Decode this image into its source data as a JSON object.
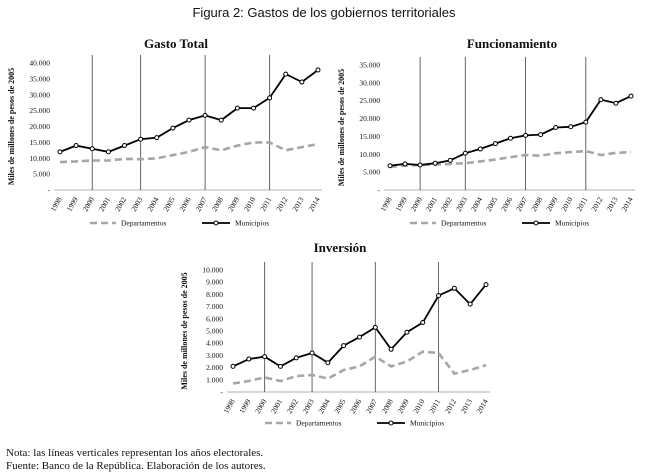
{
  "figure_title": "Figura 2: Gastos de los gobiernos territoriales",
  "notes": [
    "Nota: las líneas verticales representan los años electorales.",
    "Fuente: Banco de la República. Elaboración de los autores."
  ],
  "chart_data": [
    {
      "type": "line",
      "title": "Gasto Total",
      "xlabel": "",
      "ylabel": "Miles de millones de pesos de 2005",
      "x": [
        "1998",
        "1999",
        "2000",
        "2001",
        "2002",
        "2003",
        "2004",
        "2005",
        "2006",
        "2007",
        "2008",
        "2009",
        "2010",
        "2011",
        "2012",
        "2013",
        "2014"
      ],
      "yticks": [
        "-",
        "5.000",
        "10.000",
        "15.000",
        "20.000",
        "25.000",
        "30.000",
        "35.000",
        "40.000"
      ],
      "ylim": [
        0,
        40000
      ],
      "vlines": [
        "2000",
        "2003",
        "2007",
        "2011"
      ],
      "legend": "bottom",
      "series": [
        {
          "name": "Departamentos",
          "style": "dashed",
          "color": "#a6a6a6",
          "values": [
            8800,
            9000,
            9300,
            9300,
            9800,
            9700,
            10000,
            11000,
            12000,
            13500,
            12500,
            14000,
            15000,
            15000,
            12500,
            13500,
            14500
          ]
        },
        {
          "name": "Municipios",
          "style": "solid-markers",
          "color": "#000000",
          "values": [
            12000,
            14000,
            13000,
            12000,
            14000,
            16000,
            16500,
            19500,
            22000,
            23500,
            22000,
            25800,
            25800,
            29000,
            36500,
            34000,
            37800
          ]
        }
      ]
    },
    {
      "type": "line",
      "title": "Funcionamiento",
      "xlabel": "",
      "ylabel": "Miles de millones de pesos de 2005",
      "x": [
        "1998",
        "1999",
        "2000",
        "2001",
        "2002",
        "2003",
        "2004",
        "2005",
        "2006",
        "2007",
        "2008",
        "2009",
        "2010",
        "2011",
        "2012",
        "2013",
        "2014"
      ],
      "yticks": [
        "-",
        "5.000",
        "10.000",
        "15.000",
        "20.000",
        "25.000",
        "30.000",
        "35.000"
      ],
      "ylim": [
        0,
        35000
      ],
      "vlines": [
        "2000",
        "2003",
        "2007",
        "2011"
      ],
      "legend": "bottom",
      "series": [
        {
          "name": "Departamentos",
          "style": "dashed",
          "color": "#a6a6a6",
          "values": [
            6500,
            6800,
            7000,
            7100,
            7300,
            7500,
            8000,
            8500,
            9200,
            9800,
            9600,
            10300,
            10600,
            10900,
            9800,
            10400,
            10600
          ]
        },
        {
          "name": "Municipios",
          "style": "solid-markers",
          "color": "#000000",
          "values": [
            6800,
            7300,
            7000,
            7500,
            8300,
            10300,
            11500,
            13000,
            14500,
            15300,
            15500,
            17500,
            17700,
            19000,
            25300,
            24300,
            26300
          ]
        }
      ]
    },
    {
      "type": "line",
      "title": "Inversión",
      "xlabel": "",
      "ylabel": "Miles de millones de pesos de 2005",
      "x": [
        "1998",
        "1999",
        "2000",
        "2001",
        "2002",
        "2003",
        "2004",
        "2005",
        "2006",
        "2007",
        "2008",
        "2009",
        "2010",
        "2011",
        "2012",
        "2013",
        "2014"
      ],
      "yticks": [
        "-",
        "1.000",
        "2.000",
        "3.000",
        "4.000",
        "5.000",
        "6.000",
        "7.000",
        "8.000",
        "9.000",
        "10.000"
      ],
      "ylim": [
        0,
        10000
      ],
      "vlines": [
        "2000",
        "2003",
        "2007",
        "2011"
      ],
      "legend": "bottom",
      "series": [
        {
          "name": "Departamentos",
          "style": "dashed",
          "color": "#a6a6a6",
          "values": [
            700,
            900,
            1200,
            900,
            1300,
            1400,
            1100,
            1800,
            2100,
            2900,
            2100,
            2500,
            3300,
            3200,
            1500,
            1800,
            2200
          ]
        },
        {
          "name": "Municipios",
          "style": "solid-markers",
          "color": "#000000",
          "values": [
            2100,
            2700,
            2900,
            2100,
            2800,
            3200,
            2400,
            3800,
            4500,
            5300,
            3500,
            4900,
            5700,
            7900,
            8500,
            7200,
            8800
          ]
        }
      ]
    }
  ]
}
